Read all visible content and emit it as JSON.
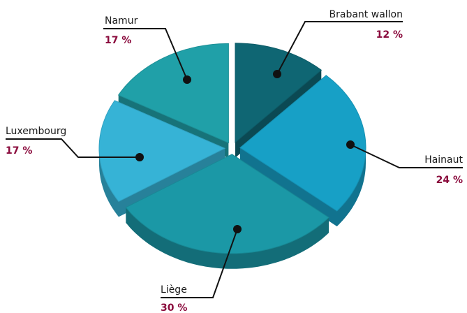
{
  "chart_data": {
    "type": "pie",
    "categories": [
      "Brabant wallon",
      "Hainaut",
      "Liège",
      "Luxembourg",
      "Namur"
    ],
    "values": [
      12,
      24,
      30,
      17,
      17
    ],
    "value_labels": [
      "12 %",
      "24 %",
      "30 %",
      "17 %",
      "17 %"
    ],
    "colors": [
      "#0f6673",
      "#17a0c6",
      "#1b98a6",
      "#36b3d6",
      "#20a0a8"
    ]
  }
}
